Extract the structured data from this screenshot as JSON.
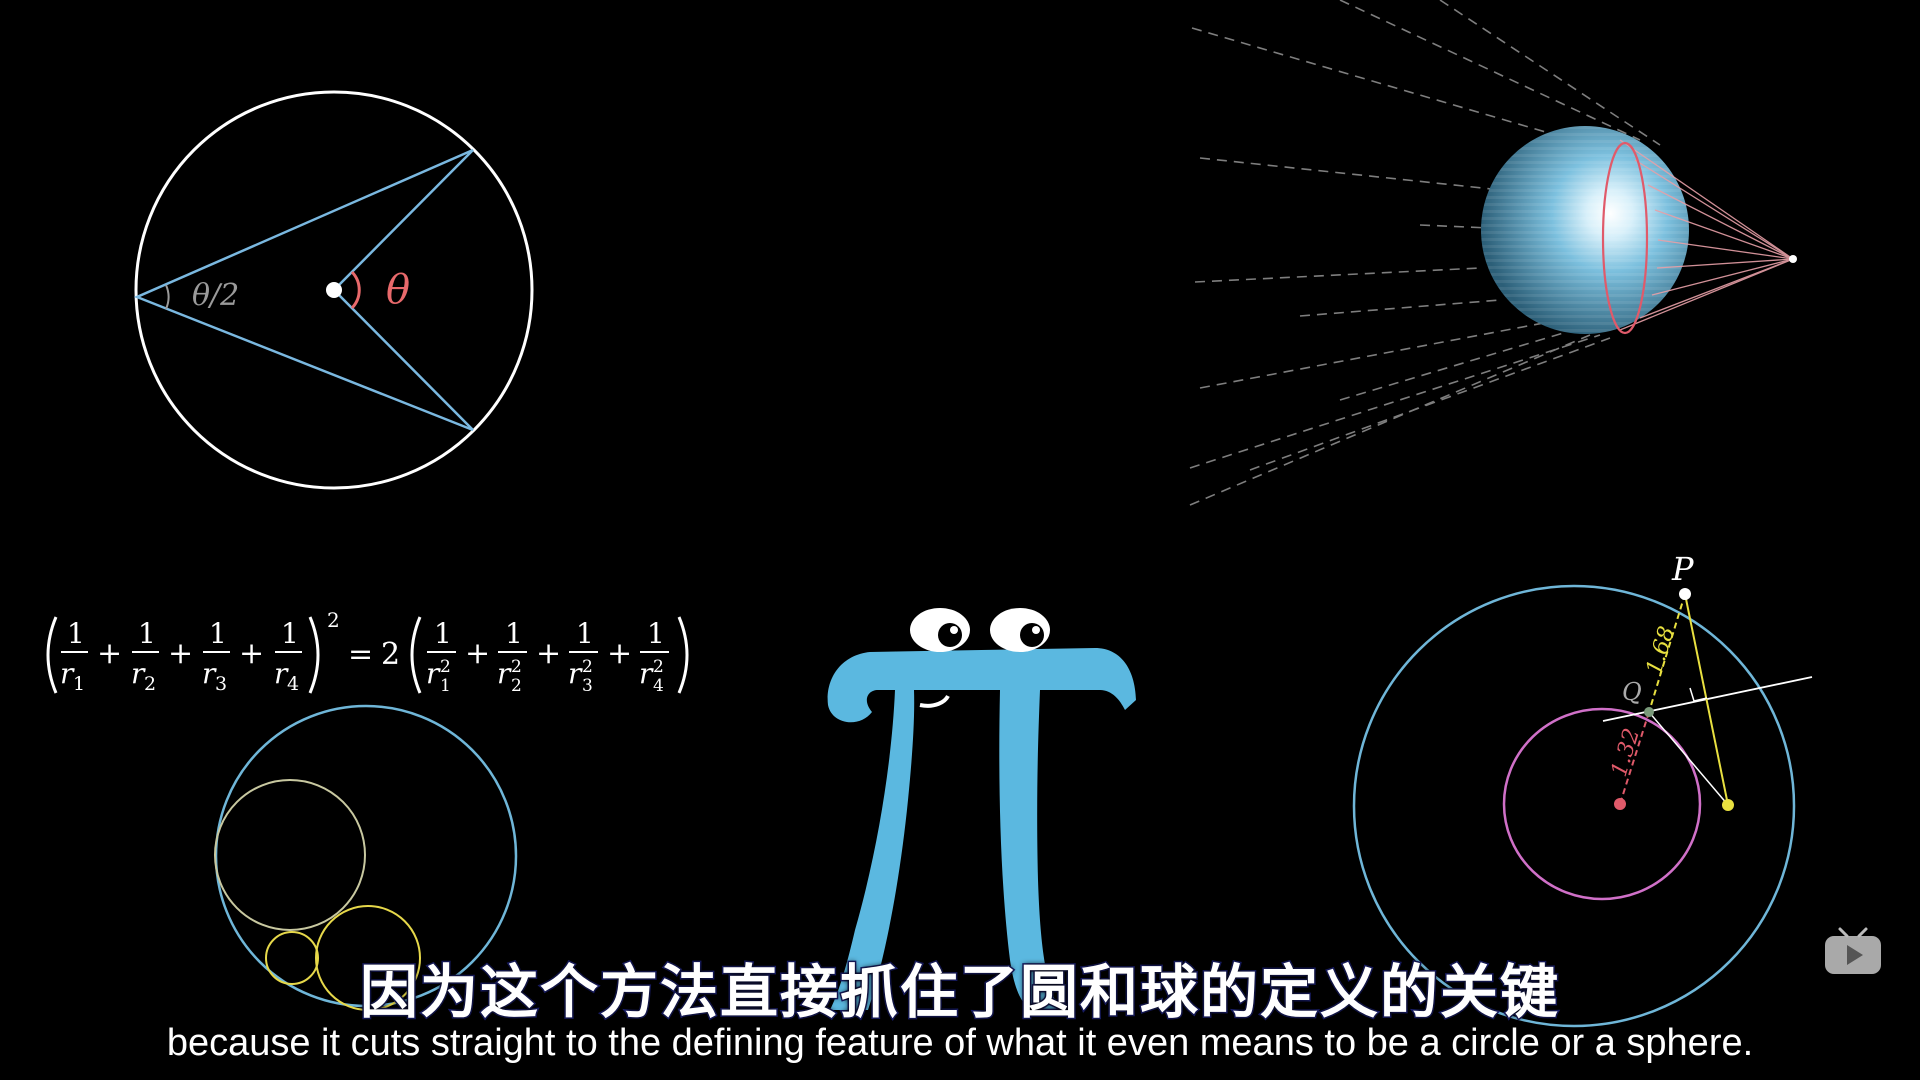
{
  "inscribed_angle": {
    "half_angle_label": "θ/2",
    "angle_label": "θ",
    "colors": {
      "circle": "#ffffff",
      "lines": "#7ab8e0",
      "theta": "#e8696b",
      "half_theta": "#9a9a9a"
    }
  },
  "sphere_scene": {
    "colors": {
      "sphere": "#6fb6d8",
      "rim": "#e05a6a",
      "cone": "#e8a0a8",
      "rays": "#9a9a9a"
    }
  },
  "descartes_theorem": {
    "numerators": [
      "1",
      "1",
      "1",
      "1"
    ],
    "lhs_denominators": [
      {
        "base": "r",
        "sub": "1"
      },
      {
        "base": "r",
        "sub": "2"
      },
      {
        "base": "r",
        "sub": "3"
      },
      {
        "base": "r",
        "sub": "4"
      }
    ],
    "rhs_denominators": [
      {
        "base": "r",
        "sub": "1",
        "sup": "2"
      },
      {
        "base": "r",
        "sub": "2",
        "sup": "2"
      },
      {
        "base": "r",
        "sub": "3",
        "sup": "2"
      },
      {
        "base": "r",
        "sub": "4",
        "sup": "2"
      }
    ],
    "plus": "+",
    "exponent": "2",
    "equals": "=",
    "coefficient": "2",
    "colors": {
      "outer": "#6fb6d8",
      "large": "#c8c8a0",
      "small": "#e6d84a"
    }
  },
  "ellipse_scene": {
    "point_p": "P",
    "point_q": "Q",
    "length_pq": "1.68",
    "length_q_focus": "1.32",
    "colors": {
      "outer": "#6fb6d8",
      "ellipse": "#d070c8",
      "tangent": "#ffffff",
      "yellow": "#e8e040",
      "red": "#e05a6a"
    }
  },
  "pi_character": {
    "color": "#5bb8e0"
  },
  "subtitles": {
    "chinese": "因为这个方法直接抓住了圆和球的定义的关键",
    "english": "because it cuts straight to the defining feature of what it even means to be a circle or a sphere."
  },
  "player": {
    "logo": "tv-play-icon"
  }
}
